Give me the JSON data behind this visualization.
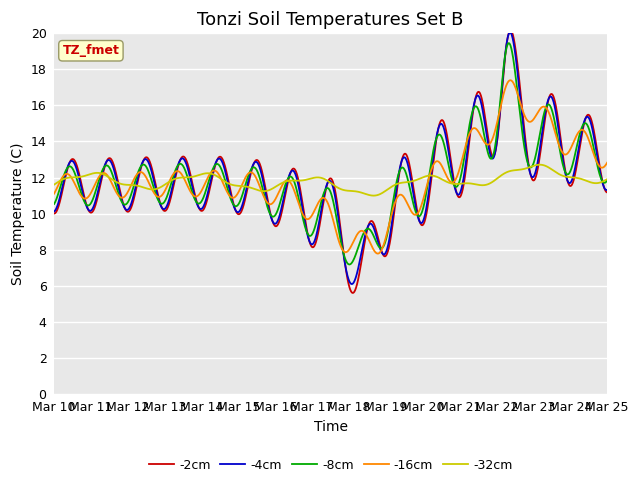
{
  "title": "Tonzi Soil Temperatures Set B",
  "xlabel": "Time",
  "ylabel": "Soil Temperature (C)",
  "ylim": [
    0,
    20
  ],
  "xlim": [
    0,
    15
  ],
  "xtick_labels": [
    "Mar 10",
    "Mar 11",
    "Mar 12",
    "Mar 13",
    "Mar 14",
    "Mar 15",
    "Mar 16",
    "Mar 17",
    "Mar 18",
    "Mar 19",
    "Mar 20",
    "Mar 21",
    "Mar 22",
    "Mar 23",
    "Mar 24",
    "Mar 25"
  ],
  "series_colors": [
    "#cc0000",
    "#0000cc",
    "#00aa00",
    "#ff8800",
    "#cccc00"
  ],
  "series_labels": [
    "-2cm",
    "-4cm",
    "-8cm",
    "-16cm",
    "-32cm"
  ],
  "annotation_text": "TZ_fmet",
  "annotation_color": "#cc0000",
  "annotation_bg": "#ffffcc",
  "plot_bg": "#e8e8e8",
  "title_fontsize": 13,
  "axis_fontsize": 10,
  "tick_fontsize": 9
}
